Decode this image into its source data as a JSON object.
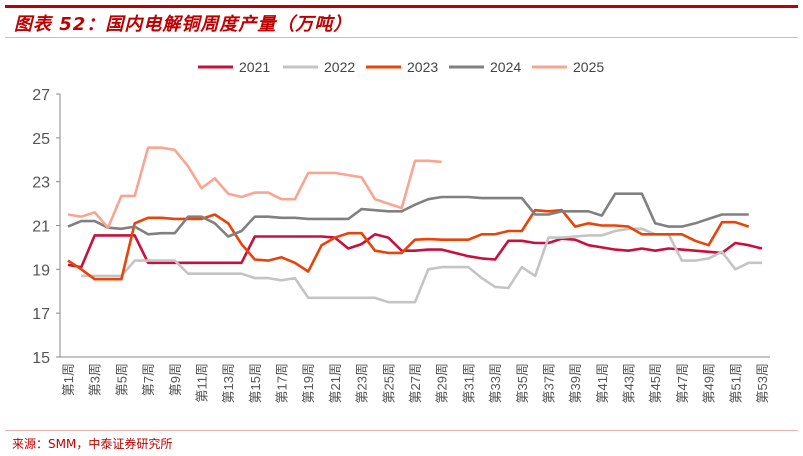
{
  "title": "图表 52：国内电解铜周度产量（万吨）",
  "source": "来源：SMM，中泰证券研究所",
  "chart_data": {
    "type": "line",
    "title": "国内电解铜周度产量（万吨）",
    "xlabel": "",
    "ylabel": "万吨",
    "ylim": [
      15,
      27
    ],
    "yticks": [
      15,
      17,
      19,
      21,
      23,
      25,
      27
    ],
    "x_tick_labels": [
      "第1周",
      "第3周",
      "第5周",
      "第7周",
      "第9周",
      "第11周",
      "第13周",
      "第15周",
      "第17周",
      "第19周",
      "第21周",
      "第23周",
      "第25周",
      "第27周",
      "第29周",
      "第31周",
      "第33周",
      "第35周",
      "第37周",
      "第39周",
      "第41周",
      "第43周",
      "第45周",
      "第47周",
      "第49周",
      "第51周",
      "第53周"
    ],
    "weeks": 53,
    "legend_position": "top",
    "series": [
      {
        "name": "2021",
        "color": "#C8103E",
        "start_week": 1,
        "values": [
          19.2,
          19.1,
          20.55,
          20.55,
          20.55,
          20.55,
          19.3,
          19.3,
          19.3,
          19.3,
          19.3,
          19.3,
          19.3,
          19.3,
          20.5,
          20.5,
          20.5,
          20.5,
          20.5,
          20.5,
          20.45,
          19.95,
          20.15,
          20.6,
          20.45,
          19.85,
          19.85,
          19.9,
          19.9,
          19.75,
          19.6,
          19.5,
          19.45,
          20.3,
          20.3,
          20.2,
          20.2,
          20.4,
          20.35,
          20.1,
          20.0,
          19.9,
          19.85,
          19.95,
          19.85,
          19.95,
          19.9,
          19.85,
          19.8,
          19.75,
          20.2,
          20.1,
          19.95
        ]
      },
      {
        "name": "2022",
        "color": "#C4C4C4",
        "start_week": 2,
        "values": [
          18.7,
          18.7,
          18.7,
          18.7,
          19.4,
          19.4,
          19.4,
          19.4,
          18.8,
          18.8,
          18.8,
          18.8,
          18.8,
          18.6,
          18.6,
          18.5,
          18.6,
          17.7,
          17.7,
          17.7,
          17.7,
          17.7,
          17.7,
          17.5,
          17.5,
          17.5,
          19.0,
          19.1,
          19.1,
          19.1,
          18.6,
          18.2,
          18.15,
          19.1,
          18.7,
          20.45,
          20.45,
          20.5,
          20.55,
          20.55,
          20.75,
          20.85,
          20.85,
          20.6,
          20.6,
          19.4,
          19.4,
          19.5,
          19.8,
          19.0,
          19.3,
          19.3
        ]
      },
      {
        "name": "2023",
        "color": "#E8440A",
        "start_week": 1,
        "values": [
          19.4,
          19.0,
          18.55,
          18.55,
          18.55,
          21.1,
          21.35,
          21.35,
          21.3,
          21.3,
          21.3,
          21.5,
          21.1,
          20.15,
          19.45,
          19.4,
          19.55,
          19.3,
          18.9,
          20.1,
          20.45,
          20.65,
          20.65,
          19.85,
          19.75,
          19.75,
          20.35,
          20.38,
          20.35,
          20.35,
          20.35,
          20.6,
          20.6,
          20.75,
          20.75,
          21.7,
          21.65,
          21.7,
          20.95,
          21.1,
          21.0,
          21.0,
          20.95,
          20.6,
          20.6,
          20.6,
          20.6,
          20.3,
          20.1,
          21.15,
          21.15,
          20.95
        ]
      },
      {
        "name": "2024",
        "color": "#808080",
        "start_week": 1,
        "values": [
          20.95,
          21.2,
          21.2,
          20.9,
          20.85,
          20.95,
          20.6,
          20.65,
          20.65,
          21.4,
          21.4,
          21.1,
          20.5,
          20.75,
          21.4,
          21.4,
          21.35,
          21.35,
          21.3,
          21.3,
          21.3,
          21.3,
          21.75,
          21.7,
          21.65,
          21.65,
          21.95,
          22.2,
          22.3,
          22.3,
          22.3,
          22.25,
          22.25,
          22.25,
          22.25,
          21.5,
          21.5,
          21.65,
          21.65,
          21.65,
          21.45,
          22.45,
          22.45,
          22.45,
          21.1,
          20.95,
          20.95,
          21.1,
          21.3,
          21.5,
          21.5,
          21.5
        ]
      },
      {
        "name": "2025",
        "color": "#F8A592",
        "start_week": 1,
        "values": [
          21.5,
          21.4,
          21.6,
          20.9,
          22.35,
          22.35,
          24.55,
          24.55,
          24.45,
          23.7,
          22.7,
          23.15,
          22.45,
          22.3,
          22.5,
          22.5,
          22.2,
          22.2,
          23.4,
          23.4,
          23.4,
          23.3,
          23.2,
          22.2,
          22.0,
          21.8,
          23.95,
          23.95,
          23.9
        ]
      }
    ]
  }
}
